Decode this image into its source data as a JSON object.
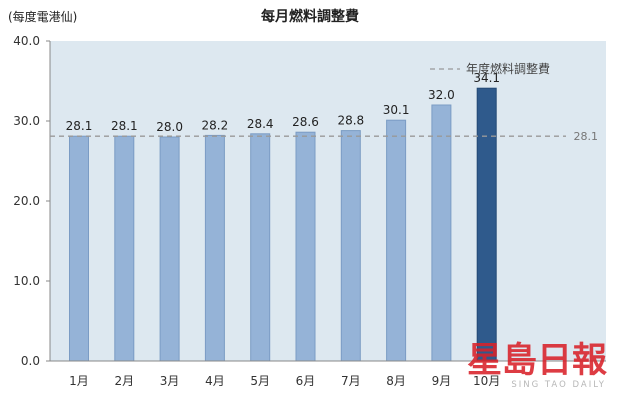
{
  "chart_data": {
    "type": "bar",
    "title": "每月燃料調整費",
    "ylabel": "(每度電港仙)",
    "xlabel": "",
    "ylim": [
      0,
      40
    ],
    "yticks": [
      "0.0",
      "10.0",
      "20.0",
      "30.0",
      "40.0"
    ],
    "ytick_values": [
      0,
      10,
      20,
      30,
      40
    ],
    "categories": [
      "1月",
      "2月",
      "3月",
      "4月",
      "5月",
      "6月",
      "7月",
      "8月",
      "9月",
      "10月"
    ],
    "values": [
      28.1,
      28.1,
      28.0,
      28.2,
      28.4,
      28.6,
      28.8,
      30.1,
      32.0,
      34.1
    ],
    "value_labels": [
      "28.1",
      "28.1",
      "28.0",
      "28.2",
      "28.4",
      "28.6",
      "28.8",
      "30.1",
      "32.0",
      "34.1"
    ],
    "highlight_index": 9,
    "reference_line": {
      "name": "年度燃料調整費",
      "value": 28.1,
      "label": "28.1"
    },
    "grid": false,
    "legend_position": "top-right",
    "colors": {
      "bar": "#95b3d7",
      "bar_edge": "#7b9cc4",
      "bar_highlight": "#2f5a8c",
      "plot_bg": "#dde8f0",
      "reference_line": "#999999",
      "axis_text": "#333333"
    }
  },
  "watermark": {
    "text": "星島日報",
    "subtext": "SING TAO DAILY"
  }
}
